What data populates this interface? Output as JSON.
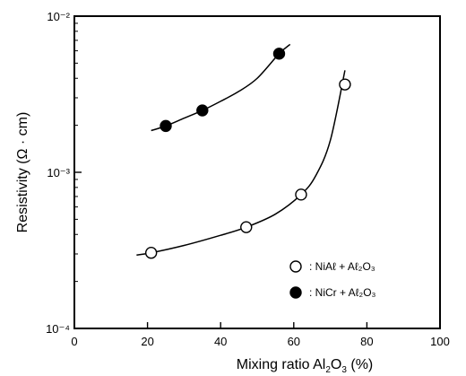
{
  "chart_data": {
    "type": "scatter",
    "xlabel": "Mixing ratio Al2O3 (%)",
    "ylabel": "Resistivity (Ω · cm)",
    "x_ticks": [
      "0",
      "20",
      "40",
      "60",
      "80",
      "100"
    ],
    "y_ticks": [
      "10⁻²",
      "10⁻³",
      "10⁻⁴"
    ],
    "xlim": [
      0,
      100
    ],
    "ylim": [
      0.0001,
      0.01
    ],
    "y_scale": "log",
    "grid": false,
    "legend_position": "bottom-right",
    "series": [
      {
        "name": ": NiAℓ + Aℓ₂O₃",
        "marker": "open-circle",
        "x": [
          21,
          47,
          62,
          74
        ],
        "y": [
          0.000305,
          0.000445,
          0.00072,
          0.00365
        ],
        "curve": {
          "x": [
            17,
            21,
            30,
            40,
            47,
            55,
            62,
            66,
            70,
            74
          ],
          "y": [
            0.000295,
            0.000305,
            0.00034,
            0.000395,
            0.000445,
            0.00054,
            0.00072,
            0.00095,
            0.0016,
            0.0045
          ]
        }
      },
      {
        "name": ": NiCr + Aℓ₂O₃",
        "marker": "filled-circle",
        "x": [
          25,
          35,
          56
        ],
        "y": [
          0.00198,
          0.00249,
          0.00575
        ],
        "curve": {
          "x": [
            21,
            25,
            30,
            35,
            40,
            45,
            50,
            56,
            59
          ],
          "y": [
            0.00185,
            0.00198,
            0.00222,
            0.00249,
            0.00285,
            0.0033,
            0.004,
            0.00575,
            0.0066
          ]
        }
      }
    ]
  }
}
